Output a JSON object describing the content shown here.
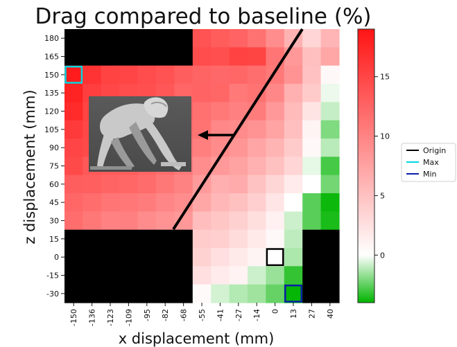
{
  "chart_data": {
    "type": "heatmap",
    "title": "Drag compared to baseline (%)",
    "xlabel": "x displacement (mm)",
    "ylabel": "z displacement (mm)",
    "x": [
      "-150",
      "-136",
      "-123",
      "-109",
      "-95",
      "-82",
      "-68",
      "-55",
      "-41",
      "-27",
      "-14",
      "0",
      "13",
      "27",
      "40"
    ],
    "y": [
      "180",
      "165",
      "150",
      "135",
      "120",
      "105",
      "90",
      "75",
      "60",
      "45",
      "30",
      "15",
      "0",
      "-15",
      "-30"
    ],
    "values": [
      [
        null,
        null,
        null,
        null,
        null,
        null,
        null,
        14.0,
        13.2,
        12.6,
        11.4,
        9.2,
        6.2,
        3.4,
        6.0
      ],
      [
        null,
        null,
        null,
        null,
        null,
        null,
        null,
        14.5,
        14.2,
        15.3,
        15.1,
        11.2,
        8.3,
        5.2,
        7.2
      ],
      [
        18.4,
        16.5,
        15.2,
        15.0,
        14.4,
        13.9,
        13.0,
        12.5,
        12.2,
        12.3,
        11.7,
        10.8,
        8.7,
        5.0,
        0.6
      ],
      [
        17.8,
        15.5,
        14.9,
        14.4,
        14.2,
        13.6,
        12.4,
        12.6,
        12.4,
        10.8,
        11.3,
        9.7,
        6.4,
        4.3,
        -0.3
      ],
      [
        17.2,
        15.1,
        14.4,
        13.8,
        13.2,
        12.7,
        12.6,
        11.6,
        10.8,
        10.3,
        10.6,
        8.3,
        5.6,
        2.2,
        -0.9
      ],
      [
        15.9,
        14.9,
        14.2,
        13.6,
        13.1,
        12.6,
        12.2,
        11.3,
        9.7,
        9.4,
        8.7,
        7.4,
        5.2,
        0.9,
        -2.0
      ],
      [
        15.0,
        14.6,
        13.7,
        13.2,
        12.7,
        12.1,
        11.3,
        10.4,
        9.4,
        8.6,
        7.3,
        6.1,
        4.3,
        0.6,
        -1.1
      ],
      [
        14.6,
        13.5,
        13.2,
        13.1,
        12.4,
        11.7,
        10.8,
        9.2,
        8.3,
        7.5,
        6.4,
        5.1,
        3.4,
        -0.4,
        -2.9
      ],
      [
        13.0,
        12.9,
        12.5,
        12.3,
        11.9,
        10.9,
        10.1,
        8.1,
        6.5,
        6.8,
        4.9,
        3.3,
        1.6,
        0.0,
        -2.2
      ],
      [
        12.3,
        11.8,
        11.2,
        11.0,
        10.6,
        9.8,
        9.2,
        7.1,
        5.8,
        5.1,
        3.9,
        2.1,
        0.0,
        -2.6,
        -3.8
      ],
      [
        11.8,
        10.9,
        10.2,
        10.3,
        9.3,
        8.8,
        8.3,
        5.3,
        4.6,
        3.8,
        2.7,
        1.1,
        -0.8,
        -2.6,
        -3.6
      ],
      [
        null,
        null,
        null,
        null,
        null,
        null,
        null,
        4.2,
        3.9,
        2.8,
        1.8,
        0.6,
        -1.0,
        null,
        null
      ],
      [
        null,
        null,
        null,
        null,
        null,
        null,
        null,
        3.6,
        2.6,
        1.7,
        0.9,
        0.0,
        -1.3,
        null,
        null
      ],
      [
        null,
        null,
        null,
        null,
        null,
        null,
        null,
        2.6,
        1.6,
        1.0,
        -0.8,
        -1.6,
        -3.2,
        null,
        null
      ],
      [
        null,
        null,
        null,
        null,
        null,
        null,
        null,
        0.4,
        -0.7,
        -1.2,
        -1.5,
        -2.4,
        -3.9,
        null,
        null
      ]
    ],
    "colorbar": {
      "ticks": [
        0,
        5,
        10,
        15
      ],
      "tick_labels": [
        "0",
        "5",
        "10",
        "15"
      ],
      "range": [
        -4,
        19
      ],
      "colors": [
        "#00b400",
        "#ffffff",
        "#ff1414"
      ]
    },
    "legend": {
      "placement": "outside-right",
      "entries": [
        {
          "label": "Origin",
          "color": "#000000"
        },
        {
          "label": "Max",
          "color": "#00d8e0"
        },
        {
          "label": "Min",
          "color": "#0a1ea8"
        }
      ]
    },
    "markers": {
      "origin": {
        "x": "0",
        "y": "0"
      },
      "max": {
        "x": "-150",
        "y": "150"
      },
      "min": {
        "x": "13",
        "y": "-30"
      }
    },
    "no_data_color": "#000000",
    "inset_image": "rider-silhouette"
  }
}
